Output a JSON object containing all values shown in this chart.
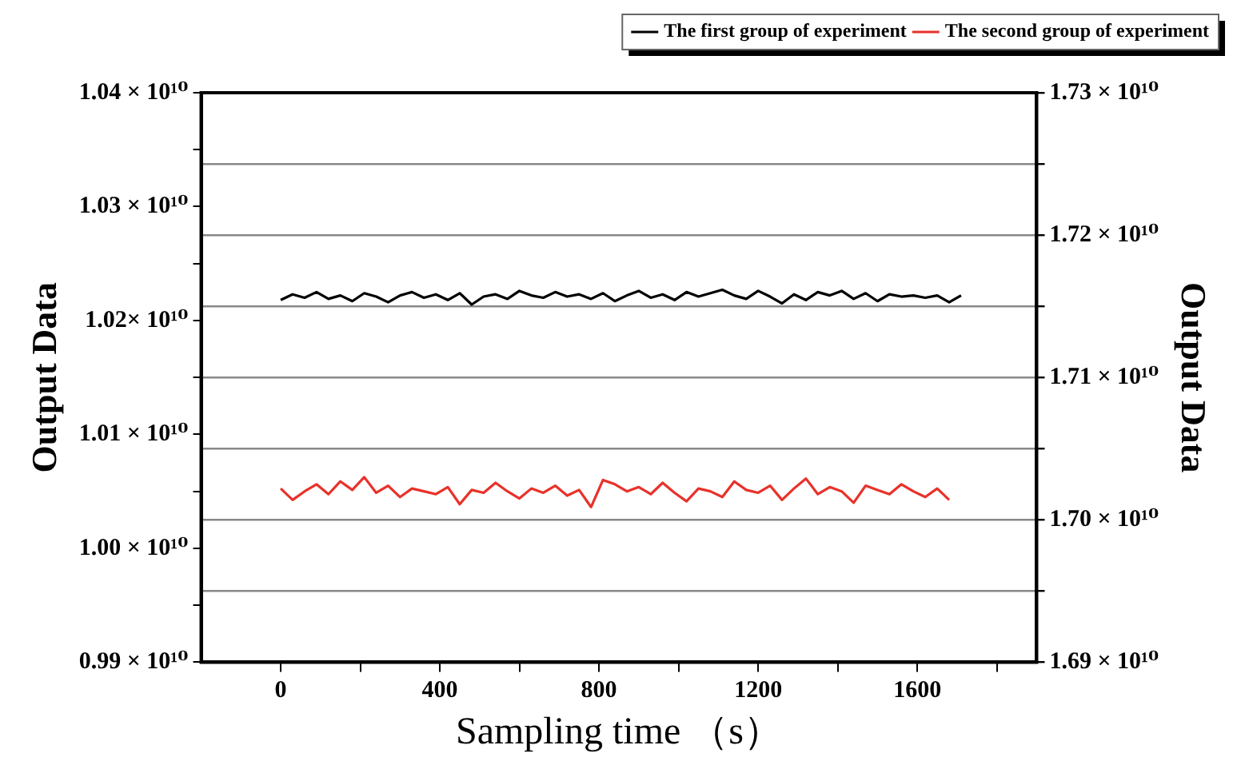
{
  "chart_data": {
    "type": "line",
    "xlabel": "Sampling time （s）",
    "ylabel": "Output Data",
    "y2label": "Output Data",
    "xlim": [
      -200,
      1900
    ],
    "xticks": [
      0,
      {
        "value": 200,
        "label": null
      },
      400,
      {
        "value": 600,
        "label": null
      },
      800,
      {
        "value": 1000,
        "label": null
      },
      1200,
      {
        "value": 1400,
        "label": null
      },
      1600,
      {
        "value": 1800,
        "label": null
      }
    ],
    "ylim": [
      9900000000.0,
      10400000000.0
    ],
    "yticks": [
      {
        "value": 9900000000.0,
        "label": "0.99 × 10¹⁰"
      },
      {
        "value": 9950000000.0,
        "label": null
      },
      {
        "value": 10000000000.0,
        "label": "1.00 × 10¹⁰"
      },
      {
        "value": 10050000000.0,
        "label": null
      },
      {
        "value": 10100000000.0,
        "label": "1.01 × 10¹⁰"
      },
      {
        "value": 10150000000.0,
        "label": null
      },
      {
        "value": 10200000000.0,
        "label": "1.02× 10¹⁰"
      },
      {
        "value": 10250000000.0,
        "label": null
      },
      {
        "value": 10300000000.0,
        "label": "1.03 × 10¹⁰"
      },
      {
        "value": 10350000000.0,
        "label": null
      },
      {
        "value": 10400000000.0,
        "label": "1.04 × 10¹⁰"
      }
    ],
    "y2lim": [
      16900000000.0,
      17300000000.0
    ],
    "y2ticks": [
      {
        "value": 16900000000.0,
        "label": "1.69 × 10¹⁰"
      },
      {
        "value": 16950000000.0,
        "label": null
      },
      {
        "value": 17000000000.0,
        "label": "1.70 × 10¹⁰"
      },
      {
        "value": 17050000000.0,
        "label": null
      },
      {
        "value": 17100000000.0,
        "label": "1.71 × 10¹⁰"
      },
      {
        "value": 17150000000.0,
        "label": null
      },
      {
        "value": 17200000000.0,
        "label": "1.72 × 10¹⁰"
      },
      {
        "value": 17250000000.0,
        "label": null
      },
      {
        "value": 17300000000.0,
        "label": "1.73 × 10¹⁰"
      }
    ],
    "grid": "y",
    "legend": "top right",
    "marker": "none",
    "line_style": "solid",
    "series": [
      {
        "name": "The first group of experiment",
        "color": "#000000",
        "x": [
          0,
          30,
          60,
          90,
          120,
          150,
          180,
          210,
          240,
          270,
          300,
          330,
          360,
          390,
          420,
          450,
          480,
          510,
          540,
          570,
          600,
          630,
          660,
          690,
          720,
          750,
          780,
          810,
          840,
          870,
          900,
          930,
          960,
          990,
          1020,
          1050,
          1080,
          1110,
          1140,
          1170,
          1200,
          1230,
          1260,
          1290,
          1320,
          1350,
          1380,
          1410,
          1440,
          1470,
          1500,
          1530,
          1560,
          1590,
          1620,
          1650,
          1680,
          1710
        ],
        "values": [
          10218000000.0,
          10223000000.0,
          10220000000.0,
          10225000000.0,
          10219000000.0,
          10222000000.0,
          10217000000.0,
          10224000000.0,
          10221000000.0,
          10216000000.0,
          10222000000.0,
          10225000000.0,
          10220000000.0,
          10223000000.0,
          10218000000.0,
          10224000000.0,
          10214000000.0,
          10221000000.0,
          10223000000.0,
          10219000000.0,
          10226000000.0,
          10222000000.0,
          10220000000.0,
          10225000000.0,
          10221000000.0,
          10223000000.0,
          10219000000.0,
          10224000000.0,
          10217000000.0,
          10222000000.0,
          10226000000.0,
          10220000000.0,
          10223000000.0,
          10218000000.0,
          10225000000.0,
          10221000000.0,
          10224000000.0,
          10227000000.0,
          10222000000.0,
          10219000000.0,
          10226000000.0,
          10221000000.0,
          10215000000.0,
          10223000000.0,
          10218000000.0,
          10225000000.0,
          10222000000.0,
          10226000000.0,
          10219000000.0,
          10224000000.0,
          10217000000.0,
          10223000000.0,
          10221000000.0,
          10222000000.0,
          10220000000.0,
          10222000000.0,
          10216000000.0,
          10222000000.0
        ]
      },
      {
        "name": "The second group of experiment",
        "color": "#e8322a",
        "axis": "y2",
        "x": [
          0,
          30,
          60,
          90,
          120,
          150,
          180,
          210,
          240,
          270,
          300,
          330,
          360,
          390,
          420,
          450,
          480,
          510,
          540,
          570,
          600,
          630,
          660,
          690,
          720,
          750,
          780,
          810,
          840,
          870,
          900,
          930,
          960,
          990,
          1020,
          1050,
          1080,
          1110,
          1140,
          1170,
          1200,
          1230,
          1260,
          1290,
          1320,
          1350,
          1380,
          1410,
          1440,
          1470,
          1500,
          1530,
          1560,
          1590,
          1620,
          1650,
          1680
        ],
        "values": [
          17022000000.0,
          17014000000.0,
          17020000000.0,
          17025000000.0,
          17018000000.0,
          17027000000.0,
          17021000000.0,
          17030000000.0,
          17019000000.0,
          17024000000.0,
          17016000000.0,
          17022000000.0,
          17020000000.0,
          17018000000.0,
          17023000000.0,
          17011000000.0,
          17021000000.0,
          17019000000.0,
          17026000000.0,
          17020000000.0,
          17015000000.0,
          17022000000.0,
          17019000000.0,
          17024000000.0,
          17017000000.0,
          17021000000.0,
          17009000000.0,
          17028000000.0,
          17025000000.0,
          17020000000.0,
          17023000000.0,
          17018000000.0,
          17026000000.0,
          17019000000.0,
          17013000000.0,
          17022000000.0,
          17020000000.0,
          17016000000.0,
          17027000000.0,
          17021000000.0,
          17019000000.0,
          17024000000.0,
          17014000000.0,
          17022000000.0,
          17029000000.0,
          17018000000.0,
          17023000000.0,
          17020000000.0,
          17012000000.0,
          17024000000.0,
          17021000000.0,
          17018000000.0,
          17025000000.0,
          17020000000.0,
          17016000000.0,
          17022000000.0,
          17014000000.0
        ]
      }
    ]
  }
}
